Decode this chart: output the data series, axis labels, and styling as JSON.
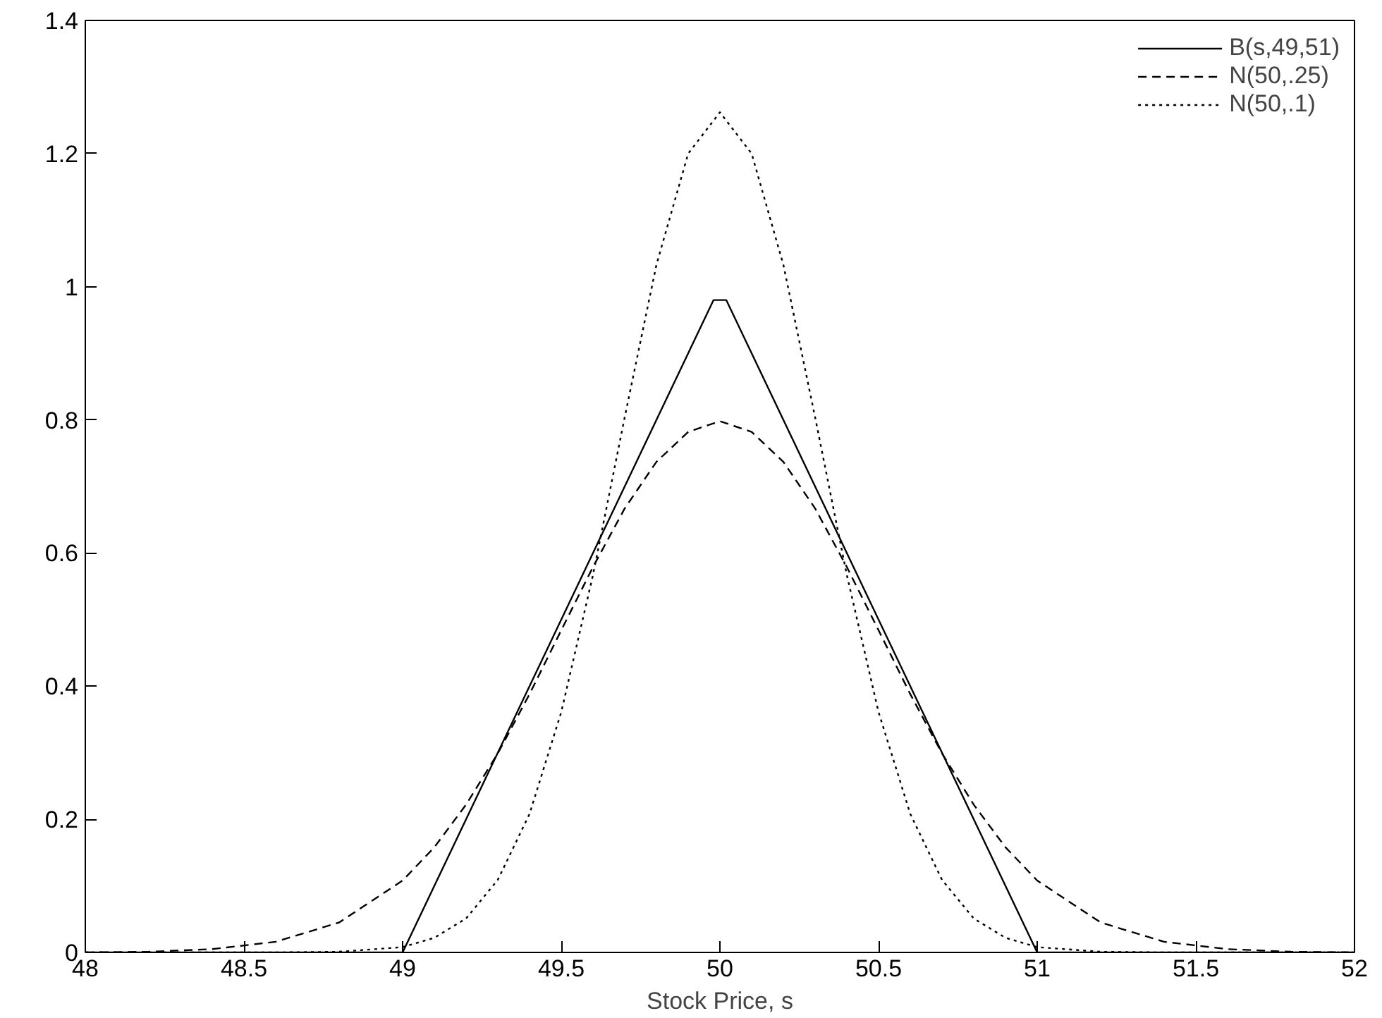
{
  "chart_data": {
    "type": "line",
    "xlabel": "Stock Price, s",
    "xlim": [
      48,
      52
    ],
    "ylim": [
      0,
      1.4
    ],
    "xticks": [
      48,
      48.5,
      49,
      49.5,
      50,
      50.5,
      51,
      51.5,
      52
    ],
    "yticks": [
      0,
      0.2,
      0.4,
      0.6,
      0.8,
      1,
      1.2,
      1.4
    ],
    "grid": false,
    "legend": "top right",
    "marker": "none",
    "series": [
      {
        "name": "B(s,49,51)",
        "color": "#000000",
        "line_style": "solid",
        "x": [
          48,
          49,
          49.98,
          50.02,
          51,
          52
        ],
        "values": [
          0,
          0,
          0.98,
          0.98,
          0,
          0
        ]
      },
      {
        "name": "N(50,.25)",
        "color": "#000000",
        "line_style": "dashed",
        "x": [
          48,
          48.2,
          48.4,
          48.6,
          48.8,
          49,
          49.1,
          49.2,
          49.3,
          49.4,
          49.5,
          49.6,
          49.7,
          49.8,
          49.9,
          50,
          50.1,
          50.2,
          50.3,
          50.4,
          50.5,
          50.6,
          50.7,
          50.8,
          50.9,
          51,
          51.2,
          51.4,
          51.6,
          51.8,
          52
        ],
        "values": [
          0,
          0.001,
          0.005,
          0.016,
          0.045,
          0.108,
          0.158,
          0.222,
          0.299,
          0.388,
          0.484,
          0.579,
          0.667,
          0.737,
          0.782,
          0.798,
          0.782,
          0.737,
          0.667,
          0.579,
          0.484,
          0.388,
          0.299,
          0.222,
          0.158,
          0.108,
          0.045,
          0.016,
          0.005,
          0.001,
          0
        ]
      },
      {
        "name": "N(50,.1)",
        "color": "#000000",
        "line_style": "dotted",
        "x": [
          48,
          48.6,
          48.8,
          49,
          49.1,
          49.2,
          49.3,
          49.4,
          49.5,
          49.6,
          49.7,
          49.8,
          49.9,
          50,
          50.1,
          50.2,
          50.3,
          50.4,
          50.5,
          50.6,
          50.7,
          50.8,
          50.9,
          51,
          51.2,
          51.4,
          52
        ],
        "values": [
          0,
          0,
          0.001,
          0.008,
          0.022,
          0.051,
          0.109,
          0.208,
          0.361,
          0.567,
          0.804,
          1.033,
          1.2,
          1.262,
          1.2,
          1.033,
          0.804,
          0.567,
          0.361,
          0.208,
          0.109,
          0.051,
          0.022,
          0.008,
          0.001,
          0,
          0
        ]
      }
    ]
  }
}
